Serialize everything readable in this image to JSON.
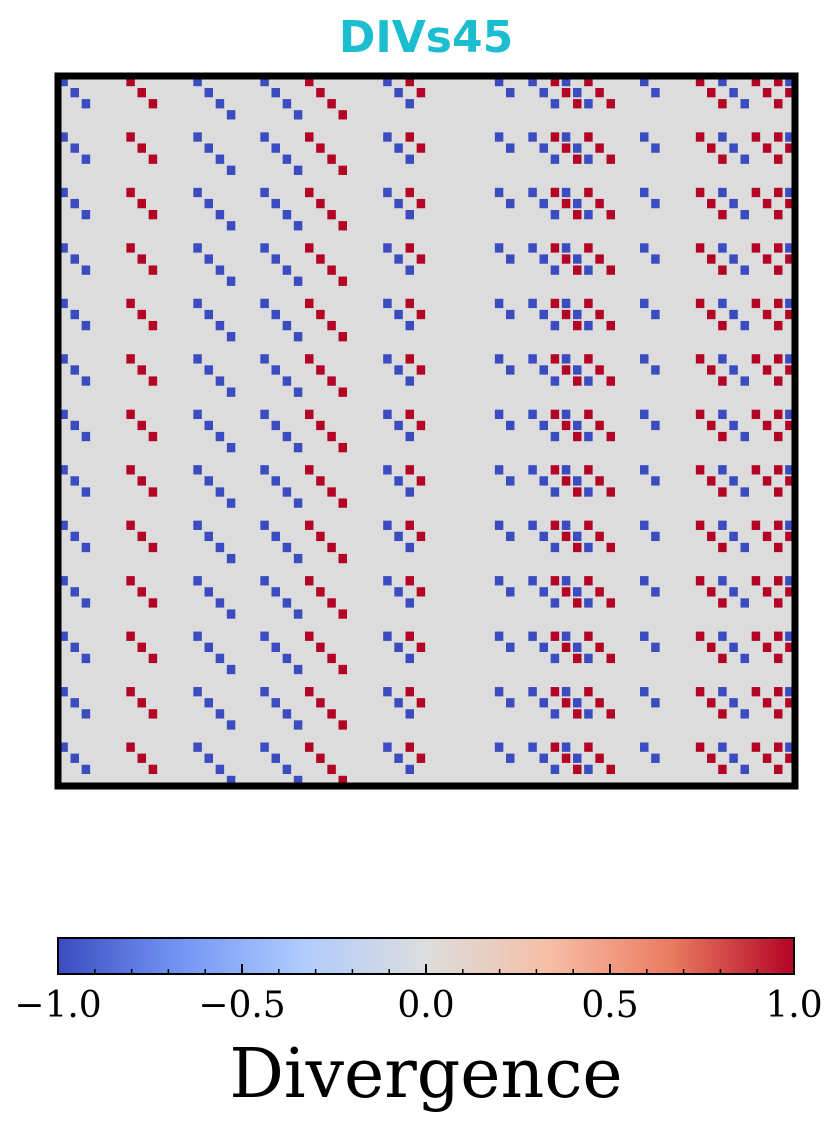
{
  "chart_data": {
    "type": "heatmap",
    "title": "DIVs45",
    "title_color": "#1bbdcf",
    "colorbar": {
      "label": "Divergence",
      "colormap": "coolwarm",
      "range": [
        -1.0,
        1.0
      ],
      "ticks": [
        -1.0,
        -0.5,
        0.0,
        0.5,
        1.0
      ],
      "tick_labels": [
        "−1.0",
        "−0.5",
        "0.0",
        "0.5",
        "1.0"
      ],
      "stops": [
        "#3b4cc0",
        "#7396f5",
        "#b0cbfc",
        "#dcdddd",
        "#f6bfa6",
        "#ea7b60",
        "#b40426"
      ]
    },
    "background_value": 0.0,
    "background_color": "#dcdcdc",
    "neg_color": "#3b4cc0",
    "pos_color": "#b40426",
    "grid": false,
    "axes_ticks": false,
    "rows": 64,
    "cols": 66,
    "row_period": 5,
    "diagonal_runs": [
      {
        "start_col": 0,
        "length": 3,
        "value": -1.0
      },
      {
        "start_col": 6,
        "length": 3,
        "value": 1.0
      },
      {
        "start_col": 12,
        "length": 4,
        "value": -1.0
      },
      {
        "start_col": 18,
        "length": 4,
        "value": -1.0
      },
      {
        "start_col": 22,
        "length": 4,
        "value": 1.0
      },
      {
        "start_col": 29,
        "length": 3,
        "value": -1.0
      },
      {
        "start_col": 31,
        "length": 2,
        "value": 1.0
      },
      {
        "start_col": 39,
        "length": 2,
        "value": -1.0
      },
      {
        "start_col": 42,
        "length": 3,
        "value": -1.0
      },
      {
        "start_col": 44,
        "length": 3,
        "value": 1.0
      },
      {
        "start_col": 45,
        "length": 3,
        "value": -1.0
      },
      {
        "start_col": 47,
        "length": 3,
        "value": 1.0
      },
      {
        "start_col": 52,
        "length": 2,
        "value": -1.0
      },
      {
        "start_col": 57,
        "length": 3,
        "value": 1.0
      },
      {
        "start_col": 59,
        "length": 3,
        "value": -1.0
      },
      {
        "start_col": 62,
        "length": 3,
        "value": 1.0
      },
      {
        "start_col": 64,
        "length": 2,
        "value": 1.0
      },
      {
        "start_col": 65,
        "length": 2,
        "value": -1.0
      }
    ]
  }
}
